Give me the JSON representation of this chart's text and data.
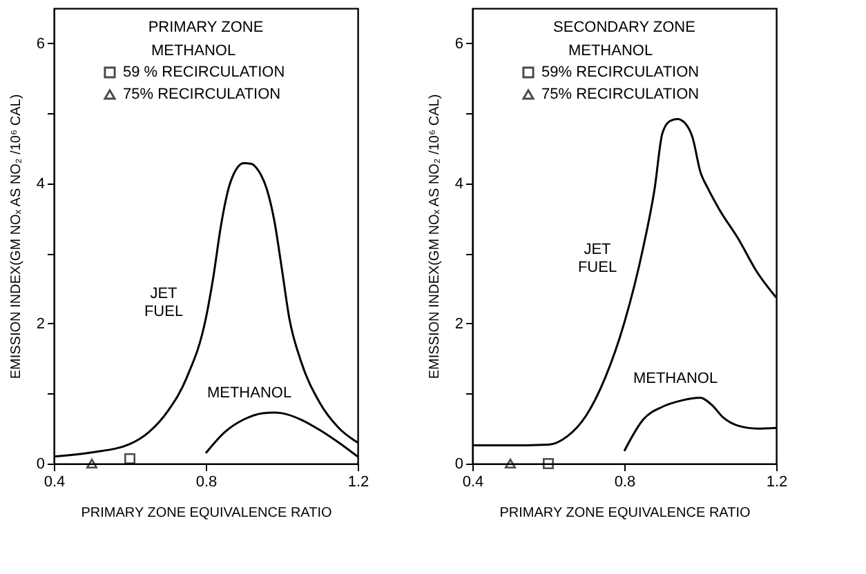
{
  "chart_data": [
    {
      "type": "line",
      "title": "PRIMARY ZONE",
      "xlabel": "PRIMARY ZONE EQUIVALENCE RATIO",
      "ylabel": "EMISSION INDEX(GM NOₓ AS NO₂ /10⁶ CAL)",
      "legend_title": "METHANOL",
      "legend": "top",
      "xlim": [
        0.4,
        1.2
      ],
      "xticks": [
        0.4,
        0.8,
        1.2
      ],
      "ylim": [
        0,
        6.5
      ],
      "yticks": [
        0,
        {
          "value": 1,
          "label": null
        },
        2,
        {
          "value": 3,
          "label": null
        },
        4,
        {
          "value": 5,
          "label": null
        },
        6
      ],
      "grid": false,
      "series": [
        {
          "name": "JET FUEL",
          "type": "line",
          "color": "#000000",
          "marker": "none",
          "x": [
            0.4,
            0.5,
            0.6,
            0.65,
            0.7,
            0.75,
            0.8,
            0.82,
            0.84,
            0.86,
            0.88,
            0.9,
            0.92,
            0.94,
            0.96,
            0.98,
            1.0,
            1.02,
            1.05,
            1.1,
            1.15,
            1.2
          ],
          "values": [
            0.1,
            0.16,
            0.28,
            0.45,
            0.75,
            1.23,
            2.07,
            2.67,
            3.4,
            3.93,
            4.2,
            4.29,
            4.28,
            4.17,
            3.93,
            3.48,
            2.79,
            2.07,
            1.47,
            0.87,
            0.51,
            0.3
          ]
        },
        {
          "name": "METHANOL",
          "type": "line",
          "color": "#000000",
          "marker": "none",
          "x": [
            0.8,
            0.85,
            0.9,
            0.95,
            0.98,
            1.0,
            1.05,
            1.1,
            1.15,
            1.2
          ],
          "values": [
            0.15,
            0.45,
            0.63,
            0.72,
            0.73,
            0.72,
            0.63,
            0.48,
            0.3,
            0.1
          ]
        },
        {
          "name": "59 % RECIRCULATION",
          "type": "scatter",
          "color": "#000000",
          "marker": "square",
          "x": [
            0.6
          ],
          "values": [
            0.07
          ]
        },
        {
          "name": "75% RECIRCULATION",
          "type": "scatter",
          "color": "#000000",
          "marker": "triangle",
          "x": [
            0.5
          ],
          "values": [
            0
          ]
        }
      ]
    },
    {
      "type": "line",
      "title": "SECONDARY ZONE",
      "xlabel": "PRIMARY ZONE EQUIVALENCE RATIO",
      "ylabel": "EMISSION INDEX(GM NOₓ AS NO₂ /10⁶ CAL)",
      "legend_title": "METHANOL",
      "legend": "top",
      "xlim": [
        0.4,
        1.2
      ],
      "xticks": [
        0.4,
        0.8,
        1.2
      ],
      "ylim": [
        0,
        6.5
      ],
      "yticks": [
        0,
        {
          "value": 1,
          "label": null
        },
        2,
        {
          "value": 3,
          "label": null
        },
        4,
        {
          "value": 5,
          "label": null
        },
        6
      ],
      "grid": false,
      "series": [
        {
          "name": "JET FUEL",
          "type": "line",
          "color": "#000000",
          "marker": "none",
          "x": [
            0.4,
            0.5,
            0.6,
            0.65,
            0.7,
            0.75,
            0.8,
            0.85,
            0.88,
            0.9,
            0.92,
            0.94,
            0.96,
            0.98,
            1.0,
            1.02,
            1.05,
            1.1,
            1.15,
            1.2
          ],
          "values": [
            0.26,
            0.26,
            0.27,
            0.39,
            0.69,
            1.23,
            2.01,
            3.09,
            3.93,
            4.71,
            4.89,
            4.92,
            4.86,
            4.65,
            4.17,
            3.93,
            3.63,
            3.21,
            2.73,
            2.37
          ]
        },
        {
          "name": "METHANOL",
          "type": "line",
          "color": "#000000",
          "marker": "none",
          "x": [
            0.8,
            0.85,
            0.9,
            0.95,
            1.0,
            1.03,
            1.06,
            1.1,
            1.15,
            1.2
          ],
          "values": [
            0.18,
            0.63,
            0.81,
            0.9,
            0.94,
            0.84,
            0.66,
            0.54,
            0.5,
            0.51
          ]
        },
        {
          "name": "59% RECIRCULATION",
          "type": "scatter",
          "color": "#000000",
          "marker": "square",
          "x": [
            0.6
          ],
          "values": [
            0
          ]
        },
        {
          "name": "75% RECIRCULATION",
          "type": "scatter",
          "color": "#000000",
          "marker": "triangle",
          "x": [
            0.5
          ],
          "values": [
            0
          ]
        }
      ]
    }
  ]
}
